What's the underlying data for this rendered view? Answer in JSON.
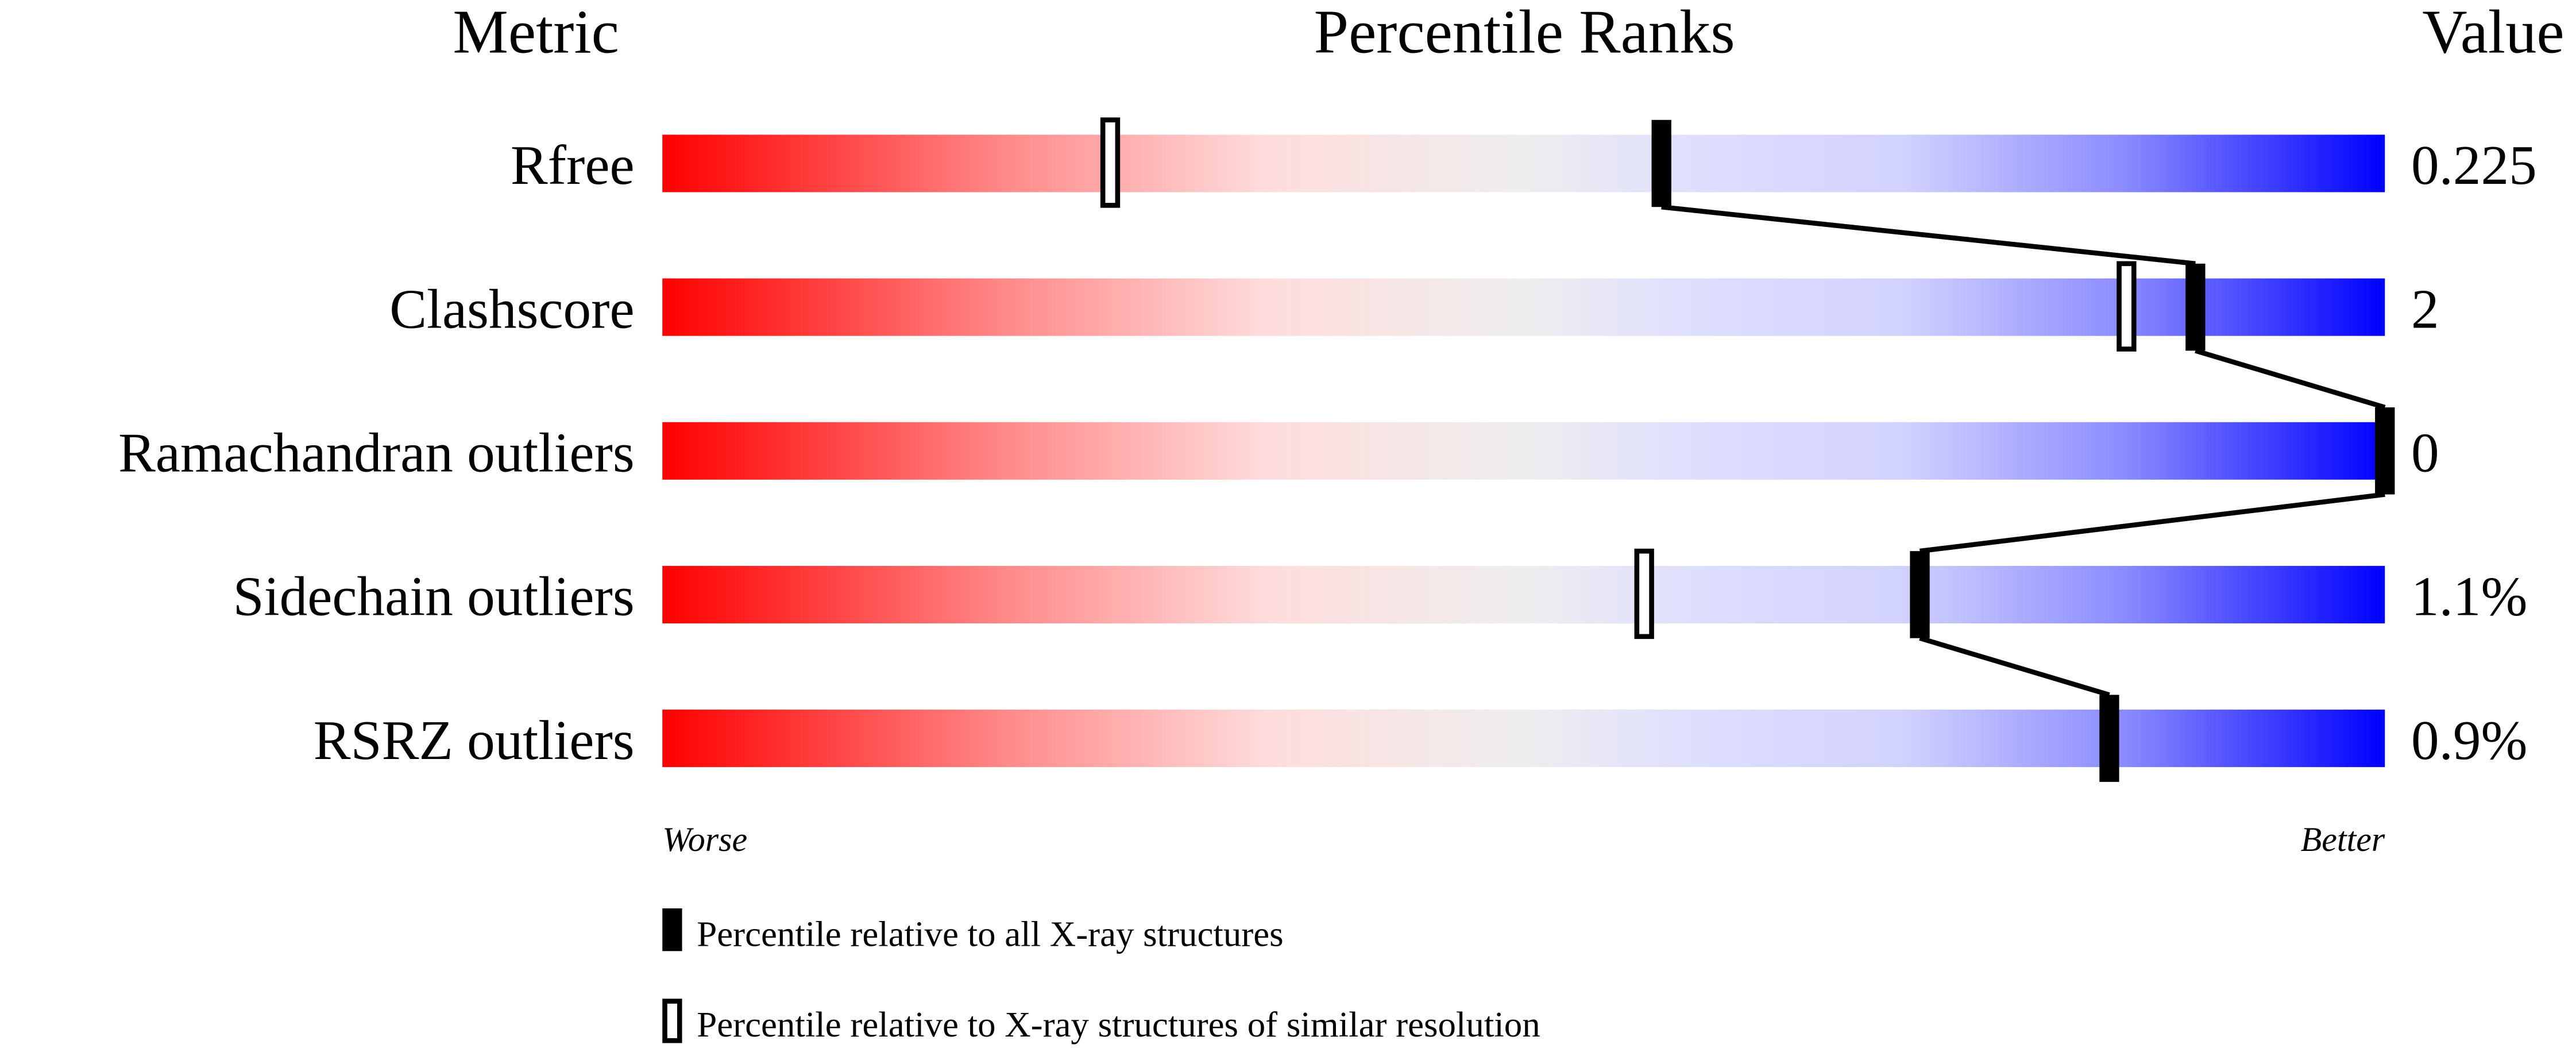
{
  "chart_data": {
    "type": "percentile-slider",
    "headers": {
      "metric": "Metric",
      "ranks": "Percentile Ranks",
      "value": "Value"
    },
    "xlim": [
      0,
      100
    ],
    "rows": [
      {
        "metric": "Rfree",
        "value": "0.225",
        "percentile_all": 58,
        "percentile_similar": 26
      },
      {
        "metric": "Clashscore",
        "value": "2",
        "percentile_all": 89,
        "percentile_similar": 85
      },
      {
        "metric": "Ramachandran outliers",
        "value": "0",
        "percentile_all": 100,
        "percentile_similar": null
      },
      {
        "metric": "Sidechain outliers",
        "value": "1.1%",
        "percentile_all": 73,
        "percentile_similar": 57
      },
      {
        "metric": "RSRZ outliers",
        "value": "0.9%",
        "percentile_all": 84,
        "percentile_similar": null
      }
    ],
    "axis_left_label": "Worse",
    "axis_right_label": "Better",
    "gradient_colors": [
      "#ff0000",
      "#eeeeee",
      "#0000ff"
    ],
    "legend": [
      {
        "marker": "filled",
        "label": "Percentile relative to all X-ray structures"
      },
      {
        "marker": "open",
        "label": "Percentile relative to X-ray structures of similar resolution"
      }
    ]
  }
}
